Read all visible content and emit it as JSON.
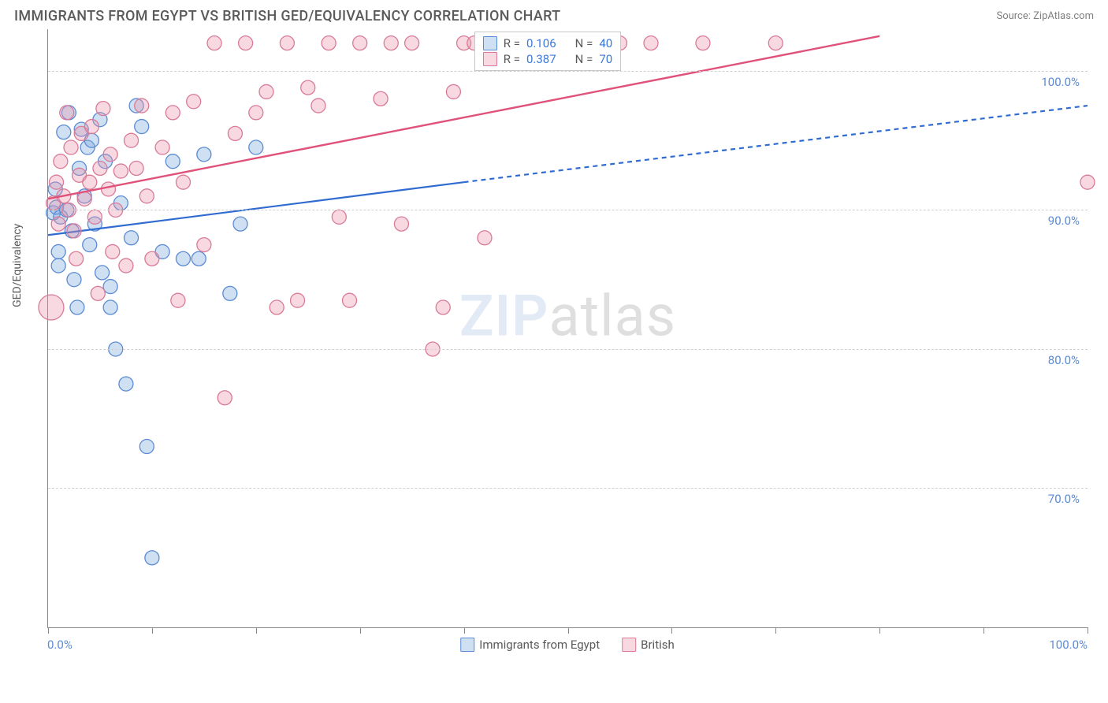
{
  "header": {
    "title": "IMMIGRANTS FROM EGYPT VS BRITISH GED/EQUIVALENCY CORRELATION CHART",
    "source": "Source: ZipAtlas.com"
  },
  "chart": {
    "type": "scatter",
    "y_axis_label": "GED/Equivalency",
    "xlim": [
      0,
      100
    ],
    "ylim": [
      60,
      103
    ],
    "x_ticks": [
      0,
      10,
      20,
      30,
      40,
      50,
      60,
      70,
      80,
      90,
      100
    ],
    "x_tick_labels_shown": {
      "first": "0.0%",
      "last": "100.0%"
    },
    "y_gridlines": [
      70,
      80,
      90,
      100
    ],
    "y_tick_labels": [
      "70.0%",
      "80.0%",
      "90.0%",
      "100.0%"
    ],
    "background_color": "#ffffff",
    "grid_color": "#d0d0d0",
    "axis_color": "#888888",
    "tick_font_color": "#5b8bd4",
    "watermark": {
      "zip": "ZIP",
      "atlas": "atlas"
    },
    "series": [
      {
        "key": "egypt",
        "label": "Immigrants from Egypt",
        "color_fill": "rgba(120,165,220,0.35)",
        "color_stroke": "#5b8bd4",
        "marker_radius": 9,
        "regression": {
          "R": "0.106",
          "N": "40",
          "x_start": 0,
          "y_start": 88.2,
          "x_solid_end": 40,
          "y_solid_end": 92.0,
          "x_dash_end": 100,
          "y_dash_end": 97.5,
          "line_color": "#2f6bd0",
          "line_width": 2.2,
          "dash_pattern": "6,5"
        },
        "points": [
          [
            0.5,
            89.8
          ],
          [
            0.8,
            90.2
          ],
          [
            1.0,
            87.0
          ],
          [
            1.2,
            89.5
          ],
          [
            1.5,
            95.6
          ],
          [
            1.8,
            90.0
          ],
          [
            2.0,
            97.0
          ],
          [
            2.3,
            88.5
          ],
          [
            2.5,
            85.0
          ],
          [
            3.0,
            93.0
          ],
          [
            3.2,
            95.8
          ],
          [
            3.5,
            91.0
          ],
          [
            3.8,
            94.5
          ],
          [
            4.0,
            87.5
          ],
          [
            4.5,
            89.0
          ],
          [
            5.0,
            96.5
          ],
          [
            5.2,
            85.5
          ],
          [
            5.5,
            93.5
          ],
          [
            6.0,
            84.5
          ],
          [
            6.5,
            80.0
          ],
          [
            7.0,
            90.5
          ],
          [
            7.5,
            77.5
          ],
          [
            8.0,
            88.0
          ],
          [
            8.5,
            97.5
          ],
          [
            6.0,
            83.0
          ],
          [
            9.0,
            96.0
          ],
          [
            9.5,
            73.0
          ],
          [
            10.0,
            65.0
          ],
          [
            11.0,
            87.0
          ],
          [
            12.0,
            93.5
          ],
          [
            13.0,
            86.5
          ],
          [
            14.5,
            86.5
          ],
          [
            15.0,
            94.0
          ],
          [
            17.5,
            84.0
          ],
          [
            18.5,
            89.0
          ],
          [
            20.0,
            94.5
          ],
          [
            2.8,
            83.0
          ],
          [
            1.0,
            86.0
          ],
          [
            0.7,
            91.5
          ],
          [
            4.2,
            95.0
          ]
        ]
      },
      {
        "key": "british",
        "label": "British",
        "color_fill": "rgba(235,145,170,0.35)",
        "color_stroke": "#d97a97",
        "marker_radius": 9,
        "regression": {
          "R": "0.387",
          "N": "70",
          "x_start": 0,
          "y_start": 90.8,
          "x_solid_end": 80,
          "y_solid_end": 102.5,
          "x_dash_end": 80,
          "y_dash_end": 102.5,
          "line_color": "#e0527a",
          "line_width": 2.4,
          "dash_pattern": "none"
        },
        "points": [
          [
            0.3,
            83.0,
            16
          ],
          [
            0.5,
            90.5
          ],
          [
            0.8,
            92.0
          ],
          [
            1.0,
            89.0
          ],
          [
            1.2,
            93.5
          ],
          [
            1.5,
            91.0
          ],
          [
            1.8,
            97.0
          ],
          [
            2.0,
            90.0
          ],
          [
            2.2,
            94.5
          ],
          [
            2.5,
            88.5
          ],
          [
            3.0,
            92.5
          ],
          [
            3.2,
            95.5
          ],
          [
            3.5,
            90.8
          ],
          [
            4.0,
            92.0
          ],
          [
            4.2,
            96.0
          ],
          [
            4.5,
            89.5
          ],
          [
            5.0,
            93.0
          ],
          [
            5.3,
            97.3
          ],
          [
            5.8,
            91.5
          ],
          [
            6.0,
            94.0
          ],
          [
            6.5,
            90.0
          ],
          [
            7.0,
            92.8
          ],
          [
            7.5,
            86.0
          ],
          [
            8.0,
            95.0
          ],
          [
            8.5,
            93.0
          ],
          [
            9.0,
            97.5
          ],
          [
            9.5,
            91.0
          ],
          [
            10.0,
            86.5
          ],
          [
            11.0,
            94.5
          ],
          [
            12.0,
            97.0
          ],
          [
            13.0,
            92.0
          ],
          [
            14.0,
            97.8
          ],
          [
            15.0,
            87.5
          ],
          [
            16.0,
            102.0
          ],
          [
            17.0,
            76.5
          ],
          [
            18.0,
            95.5
          ],
          [
            19.0,
            102.0
          ],
          [
            20.0,
            97.0
          ],
          [
            21.0,
            98.5
          ],
          [
            23.0,
            102.0
          ],
          [
            24.0,
            83.5
          ],
          [
            25.0,
            98.8
          ],
          [
            26.0,
            97.5
          ],
          [
            27.0,
            102.0
          ],
          [
            28.0,
            89.5
          ],
          [
            29.0,
            83.5
          ],
          [
            30.0,
            102.0
          ],
          [
            32.0,
            98.0
          ],
          [
            33.0,
            102.0
          ],
          [
            35.0,
            102.0
          ],
          [
            37.0,
            80.0
          ],
          [
            38.0,
            83.0
          ],
          [
            39.0,
            98.5
          ],
          [
            40.0,
            102.0
          ],
          [
            41.0,
            102.0
          ],
          [
            42.0,
            88.0
          ],
          [
            43.0,
            102.0
          ],
          [
            45.0,
            102.0
          ],
          [
            47.0,
            102.0
          ],
          [
            55.0,
            102.0
          ],
          [
            58.0,
            102.0
          ],
          [
            63.0,
            102.0
          ],
          [
            70.0,
            102.0
          ],
          [
            100.0,
            92.0
          ],
          [
            4.8,
            84.0
          ],
          [
            6.2,
            87.0
          ],
          [
            12.5,
            83.5
          ],
          [
            22.0,
            83.0
          ],
          [
            34.0,
            89.0
          ],
          [
            2.7,
            86.5
          ]
        ]
      }
    ],
    "bottom_legend": [
      {
        "swatch_fill": "rgba(120,165,220,0.35)",
        "swatch_stroke": "#5b8bd4",
        "label_key": "chart.series.0.label"
      },
      {
        "swatch_fill": "rgba(235,145,170,0.35)",
        "swatch_stroke": "#d97a97",
        "label_key": "chart.series.1.label"
      }
    ]
  }
}
